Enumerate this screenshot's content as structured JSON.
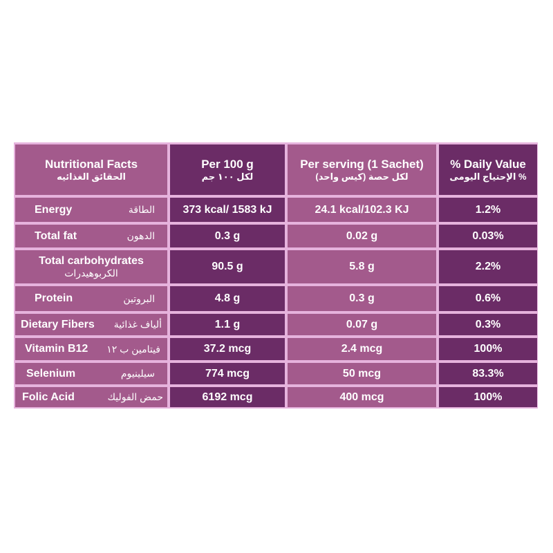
{
  "headers": [
    {
      "en": "Nutritional Facts",
      "ar": "الحقائق الغذائيه"
    },
    {
      "en": "Per 100 g",
      "ar": "لكل ١٠٠ جم"
    },
    {
      "en": "Per serving (1 Sachet)",
      "ar": "لكل حصة (كيس واحد)"
    },
    {
      "en": "% Daily Value",
      "ar": "% الإحتياج اليومى"
    }
  ],
  "rows": [
    {
      "en": "Energy",
      "ar": "الطاقة",
      "per100": "373 kcal/ 1583 kJ",
      "serving": "24.1 kcal/102.3 KJ",
      "dv": "1.2%"
    },
    {
      "en": "Total fat",
      "ar": "الدهون",
      "per100": "0.3 g",
      "serving": "0.02 g",
      "dv": "0.03%"
    },
    {
      "en": "Total carbohydrates",
      "ar": "الكربوهيدرات",
      "per100": "90.5 g",
      "serving": "5.8 g",
      "dv": "2.2%"
    },
    {
      "en": "Protein",
      "ar": "البروتين",
      "per100": "4.8 g",
      "serving": "0.3 g",
      "dv": "0.6%"
    },
    {
      "en": "Dietary Fibers",
      "ar": "ألياف غذائية",
      "per100": "1.1 g",
      "serving": "0.07 g",
      "dv": "0.3%"
    },
    {
      "en": "Vitamin B12",
      "ar": "فيتامين ب ١٢",
      "per100": "37.2 mcg",
      "serving": "2.4 mcg",
      "dv": "100%"
    },
    {
      "en": "Selenium",
      "ar": "سيلينيوم",
      "per100": "774 mcg",
      "serving": "50 mcg",
      "dv": "83.3%"
    },
    {
      "en": "Folic Acid",
      "ar": "حمض الفوليك",
      "per100": "6192 mcg",
      "serving": "400 mcg",
      "dv": "100%"
    }
  ],
  "colors": {
    "light": "#a35a8c",
    "dark": "#6b2c66",
    "border": "#e6b3dd"
  }
}
